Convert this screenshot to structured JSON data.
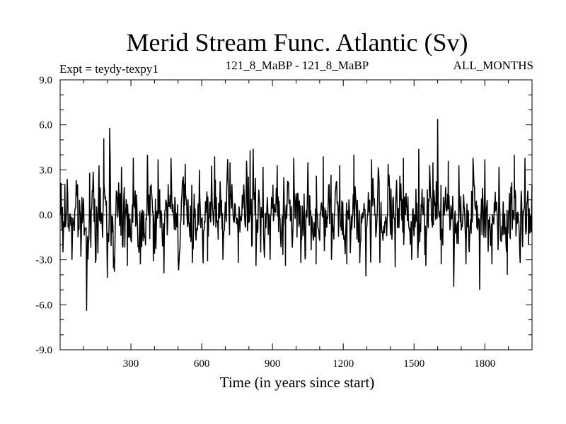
{
  "chart_data": {
    "type": "line",
    "title": "Merid Stream Func. Atlantic (Sv)",
    "subtitle_left": "Expt = teydy-texpy1",
    "subtitle_center": "121_8_MaBP - 121_8_MaBP",
    "subtitle_right": "ALL_MONTHS",
    "xlabel": "Time (in years since start)",
    "ylabel": "",
    "xlim": [
      0,
      2000
    ],
    "ylim": [
      -9.0,
      9.0
    ],
    "xticks": [
      300,
      600,
      900,
      1200,
      1500,
      1800
    ],
    "xtick_labels": [
      "300",
      "600",
      "900",
      "1200",
      "1500",
      "1800"
    ],
    "yticks": [
      -9.0,
      -6.0,
      -3.0,
      0.0,
      3.0,
      6.0,
      9.0
    ],
    "ytick_labels": [
      "-9.0",
      "-6.0",
      "-3.0",
      "0.0",
      "3.0",
      "6.0",
      "9.0"
    ],
    "grid": false,
    "series": [
      {
        "name": "",
        "color": "#000000",
        "noisy_line": {
          "x_start": 0,
          "x_end": 2000,
          "x_step": 2,
          "typical_amplitude": 2.0,
          "seed": 7
        },
        "points": [
          [
            0,
            0.0
          ],
          [
            12,
            -2.5
          ],
          [
            30,
            2.4
          ],
          [
            50,
            -3.0
          ],
          [
            70,
            1.8
          ],
          [
            88,
            -2.8
          ],
          [
            112,
            -6.4
          ],
          [
            125,
            2.8
          ],
          [
            150,
            -3.2
          ],
          [
            165,
            3.3
          ],
          [
            185,
            5.1
          ],
          [
            200,
            -4.2
          ],
          [
            210,
            5.8
          ],
          [
            230,
            -3.8
          ],
          [
            260,
            3.2
          ],
          [
            285,
            -3.4
          ],
          [
            310,
            3.8
          ],
          [
            340,
            -3.3
          ],
          [
            370,
            4.0
          ],
          [
            395,
            -3.1
          ],
          [
            415,
            3.7
          ],
          [
            440,
            -3.9
          ],
          [
            470,
            3.8
          ],
          [
            500,
            -3.0
          ],
          [
            530,
            3.4
          ],
          [
            560,
            -3.2
          ],
          [
            590,
            3.0
          ],
          [
            625,
            -3.1
          ],
          [
            655,
            3.9
          ],
          [
            690,
            -3.0
          ],
          [
            720,
            3.5
          ],
          [
            755,
            -3.2
          ],
          [
            790,
            3.6
          ],
          [
            805,
            4.3
          ],
          [
            818,
            4.4
          ],
          [
            830,
            -3.4
          ],
          [
            860,
            3.2
          ],
          [
            890,
            -3.0
          ],
          [
            920,
            3.3
          ],
          [
            955,
            -3.4
          ],
          [
            990,
            3.8
          ],
          [
            1020,
            -3.2
          ],
          [
            1050,
            3.5
          ],
          [
            1085,
            -3.3
          ],
          [
            1115,
            3.9
          ],
          [
            1150,
            -3.0
          ],
          [
            1185,
            3.3
          ],
          [
            1215,
            -3.3
          ],
          [
            1245,
            4.0
          ],
          [
            1270,
            -3.2
          ],
          [
            1296,
            -4.1
          ],
          [
            1320,
            3.7
          ],
          [
            1355,
            -3.2
          ],
          [
            1390,
            3.4
          ],
          [
            1420,
            -3.5
          ],
          [
            1455,
            3.8
          ],
          [
            1490,
            -3.0
          ],
          [
            1520,
            4.4
          ],
          [
            1550,
            -3.4
          ],
          [
            1580,
            3.5
          ],
          [
            1600,
            6.4
          ],
          [
            1615,
            -3.3
          ],
          [
            1645,
            3.6
          ],
          [
            1668,
            -4.8
          ],
          [
            1690,
            3.3
          ],
          [
            1720,
            -3.3
          ],
          [
            1750,
            3.8
          ],
          [
            1778,
            -5.0
          ],
          [
            1800,
            3.7
          ],
          [
            1830,
            -3.3
          ],
          [
            1860,
            3.2
          ],
          [
            1895,
            -4.0
          ],
          [
            1925,
            4.0
          ],
          [
            1950,
            -3.2
          ],
          [
            1970,
            3.8
          ],
          [
            1985,
            -2.0
          ],
          [
            2000,
            2.0
          ]
        ]
      }
    ]
  }
}
